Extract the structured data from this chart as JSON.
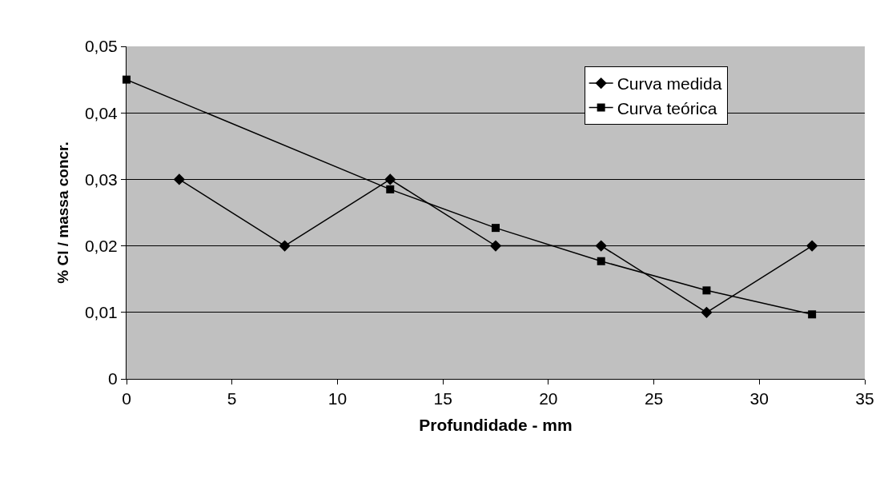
{
  "chart_data": {
    "type": "line",
    "xlabel": "Profundidade - mm",
    "ylabel": "% Cl / massa concr.",
    "series": [
      {
        "name": "Curva medida",
        "color": "#000000",
        "marker": "diamond",
        "x": [
          2.5,
          7.5,
          12.5,
          17.5,
          22.5,
          27.5,
          32.5
        ],
        "values": [
          0.03,
          0.02,
          0.03,
          0.02,
          0.02,
          0.01,
          0.02
        ]
      },
      {
        "name": "Curva teórica",
        "color": "#000000",
        "marker": "square",
        "x": [
          0,
          12.5,
          17.5,
          22.5,
          27.5,
          32.5
        ],
        "values": [
          0.045,
          0.0285,
          0.0227,
          0.0177,
          0.0133,
          0.0097
        ]
      }
    ],
    "xlim": [
      0,
      35
    ],
    "xticks": [
      0,
      5,
      10,
      15,
      20,
      25,
      30,
      35
    ],
    "ylim": [
      0,
      0.05
    ],
    "yticks": [
      0,
      {
        "value": 0.01,
        "label": "0,01"
      },
      {
        "value": 0.02,
        "label": "0,02"
      },
      {
        "value": 0.03,
        "label": "0,03"
      },
      {
        "value": 0.04,
        "label": "0,04"
      },
      {
        "value": 0.05,
        "label": "0,05"
      }
    ],
    "grid": "y",
    "legend": "top right",
    "line_style": "solid"
  }
}
